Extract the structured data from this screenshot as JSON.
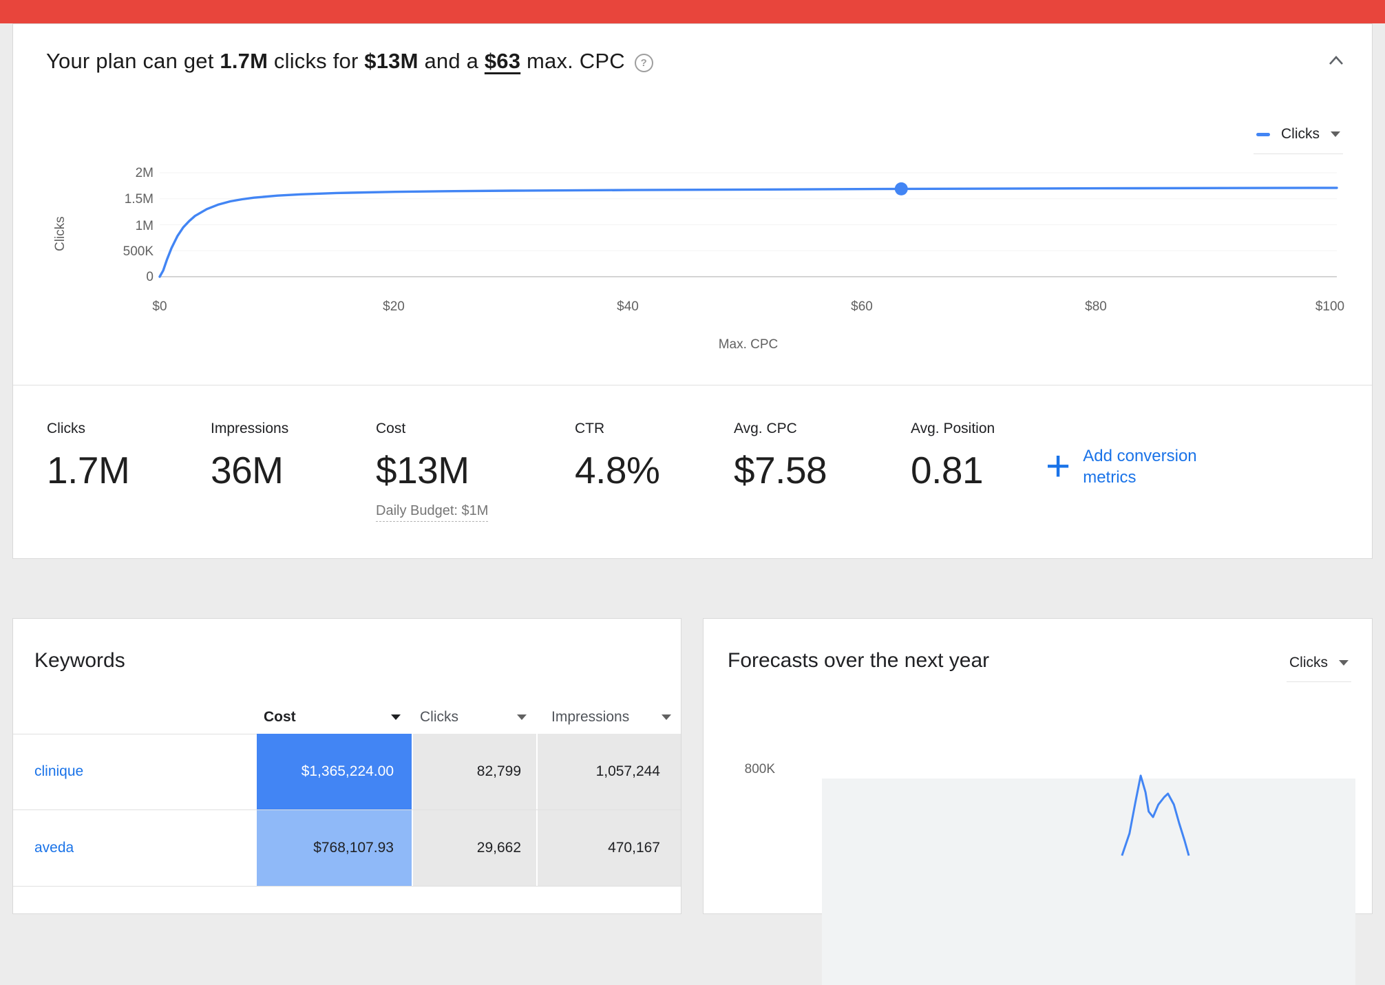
{
  "colors": {
    "top_bar_red": "#e8453c",
    "chart_blue": "#4285f4",
    "link_blue": "#1a73e8",
    "cost_cell_strong": "#4285f4",
    "cost_cell_light": "#8fb9f8"
  },
  "icons": {
    "help_glyph": "?",
    "plus_glyph": "+"
  },
  "plan": {
    "title": {
      "prefix": "Your plan can get ",
      "clicks": "1.7M",
      "mid1": " clicks for ",
      "cost": "$13M",
      "mid2": " and a ",
      "cpc": "$63",
      "suffix": " max. CPC"
    },
    "legend_label": "Clicks",
    "metrics": [
      {
        "label": "Clicks",
        "value": "1.7M"
      },
      {
        "label": "Impressions",
        "value": "36M"
      },
      {
        "label": "Cost",
        "value": "$13M",
        "sub": "Daily Budget: $1M"
      },
      {
        "label": "CTR",
        "value": "4.8%"
      },
      {
        "label": "Avg. CPC",
        "value": "$7.58"
      },
      {
        "label": "Avg. Position",
        "value": "0.81"
      }
    ],
    "add_metrics_label": "Add conversion metrics"
  },
  "keywords": {
    "title": "Keywords",
    "columns": [
      "Cost",
      "Clicks",
      "Impressions"
    ],
    "rows": [
      {
        "keyword": "clinique",
        "cost": "$1,365,224.00",
        "clicks": "82,799",
        "impressions": "1,057,244"
      },
      {
        "keyword": "aveda",
        "cost": "$768,107.93",
        "clicks": "29,662",
        "impressions": "470,167"
      }
    ]
  },
  "forecast": {
    "title": "Forecasts over the next year",
    "dropdown_label": "Clicks",
    "y_tick": "800K"
  },
  "chart_data": [
    {
      "type": "line",
      "title": "Clicks vs Max. CPC",
      "xlabel": "Max. CPC",
      "ylabel": "Clicks",
      "x_tick_labels": [
        "$0",
        "$20",
        "$40",
        "$60",
        "$80",
        "$100"
      ],
      "y_tick_labels": [
        "2M",
        "1.5M",
        "1M",
        "500K",
        "0"
      ],
      "xlim": [
        0,
        100
      ],
      "ylim": [
        0,
        2000000
      ],
      "legend_position": "top-right",
      "series": [
        {
          "name": "Clicks",
          "points": [
            [
              0,
              0
            ],
            [
              0.3,
              0.12
            ],
            [
              0.6,
              0.32
            ],
            [
              1,
              0.55
            ],
            [
              1.5,
              0.78
            ],
            [
              2,
              0.95
            ],
            [
              2.5,
              1.07
            ],
            [
              3,
              1.17
            ],
            [
              4,
              1.3
            ],
            [
              5,
              1.39
            ],
            [
              6,
              1.45
            ],
            [
              7,
              1.49
            ],
            [
              8,
              1.52
            ],
            [
              10,
              1.56
            ],
            [
              12,
              1.585
            ],
            [
              15,
              1.61
            ],
            [
              20,
              1.633
            ],
            [
              25,
              1.647
            ],
            [
              30,
              1.656
            ],
            [
              40,
              1.667
            ],
            [
              50,
              1.677
            ],
            [
              63,
              1.69
            ],
            [
              80,
              1.701
            ],
            [
              100,
              1.71
            ]
          ],
          "units": "x: max CPC dollars, y: clicks in millions"
        }
      ],
      "marker": {
        "cpc": 63,
        "clicks_m": 1.69
      }
    },
    {
      "type": "line",
      "title": "Forecasts over the next year",
      "selected_metric": "Clicks",
      "y_tick_labels": [
        "800K"
      ],
      "note": "only a spike segment is visible; x is fraction of plot width, y in thousands of clicks",
      "visible_points": [
        [
          0.561,
          0
        ],
        [
          0.575,
          229
        ],
        [
          0.586,
          550
        ],
        [
          0.596,
          829
        ],
        [
          0.605,
          657
        ],
        [
          0.611,
          457
        ],
        [
          0.619,
          400
        ],
        [
          0.629,
          529
        ],
        [
          0.64,
          607
        ],
        [
          0.647,
          643
        ],
        [
          0.658,
          529
        ],
        [
          0.668,
          336
        ],
        [
          0.678,
          157
        ],
        [
          0.686,
          0
        ]
      ]
    }
  ]
}
